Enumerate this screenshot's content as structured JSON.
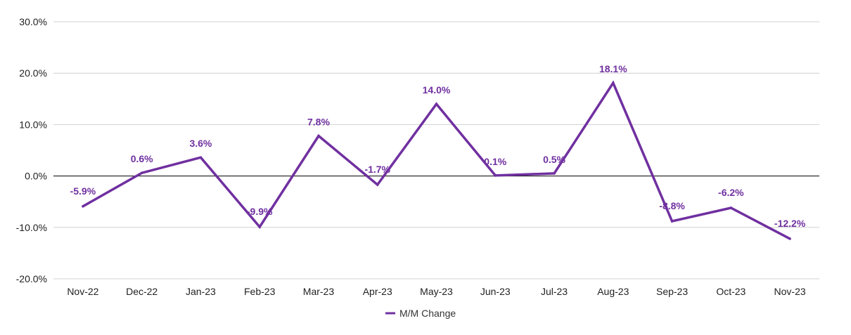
{
  "chart_data": {
    "type": "line",
    "title": "",
    "xlabel": "",
    "ylabel": "",
    "categories": [
      "Nov-22",
      "Dec-22",
      "Jan-23",
      "Feb-23",
      "Mar-23",
      "Apr-23",
      "May-23",
      "Jun-23",
      "Jul-23",
      "Aug-23",
      "Sep-23",
      "Oct-23",
      "Nov-23"
    ],
    "series": [
      {
        "name": "M/M Change",
        "values": [
          -5.9,
          0.6,
          3.6,
          -9.9,
          7.8,
          -1.7,
          14.0,
          0.1,
          0.5,
          18.1,
          -8.8,
          -6.2,
          -12.2
        ],
        "labels": [
          "-5.9%",
          "0.6%",
          "3.6%",
          "-9.9%",
          "7.8%",
          "-1.7%",
          "14.0%",
          "0.1%",
          "0.5%",
          "18.1%",
          "-8.8%",
          "-6.2%",
          "-12.2%"
        ]
      }
    ],
    "yticks": [
      30,
      20,
      10,
      0,
      -10,
      -20
    ],
    "ytick_labels": [
      "30.0%",
      "20.0%",
      "10.0%",
      "0.0%",
      "-10.0%",
      "-20.0%"
    ],
    "ylim": [
      -20,
      30
    ],
    "grid": true,
    "legend": "bottom",
    "colors": {
      "line": "#7030a0",
      "label": "#7030a0",
      "grid": "#d0d0d0",
      "zero_line": "#000000"
    }
  }
}
